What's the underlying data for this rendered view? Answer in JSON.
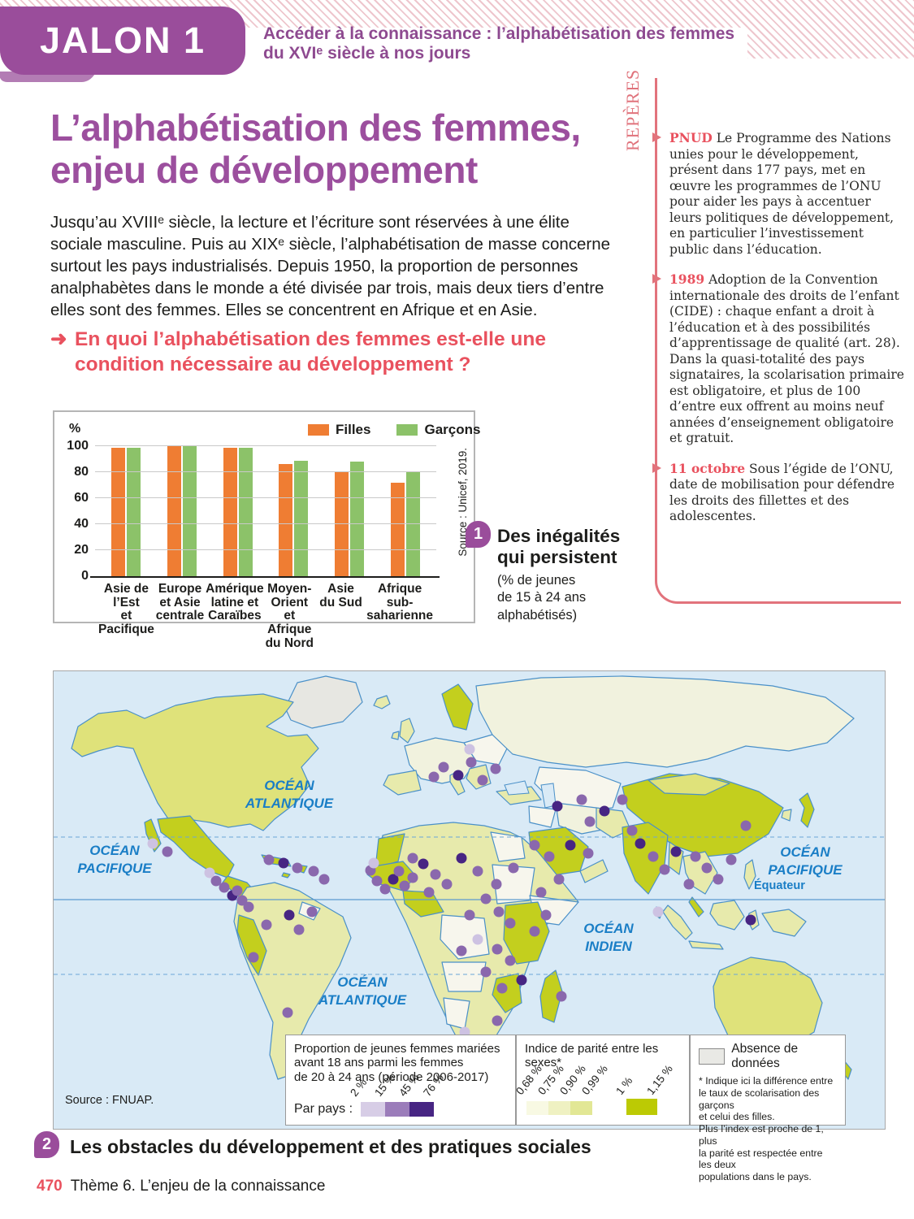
{
  "header": {
    "jalon_label": "JALON 1",
    "subtitle": "Accéder à la connaissance : l’alphabétisation des femmes du XVIᵉ siècle à nos jours"
  },
  "title": {
    "line1": "L’alphabétisation des femmes,",
    "line2": "enjeu de développement"
  },
  "intro": "Jusqu’au XVIIIᵉ siècle, la lecture et l’écriture sont réservées à une élite sociale masculine. Puis au XIXᵉ siècle, l’alphabétisation de masse concerne surtout les pays industrialisés. Depuis 1950, la proportion de personnes analphabètes dans le monde a été divisée par trois, mais deux tiers d’entre elles sont des femmes. Elles se concentrent en Afrique et en Asie.",
  "question": {
    "arrow": "➜",
    "text": "En quoi l’alphabétisation des femmes est-elle une condition nécessaire au développement ?"
  },
  "chart_data": {
    "type": "bar",
    "unit_label": "%",
    "categories": [
      "Asie de l’Est\net Pacifique",
      "Europe\net Asie\ncentrale",
      "Amérique\nlatine et\nCaraïbes",
      "Moyen-Orient\net Afrique\ndu Nord",
      "Asie\ndu Sud",
      "Afrique\nsub-\nsaharienne"
    ],
    "series": [
      {
        "name": "Filles",
        "color": "#ef7d33",
        "values": [
          99,
          100,
          99,
          86,
          80,
          72
        ]
      },
      {
        "name": "Garçons",
        "color": "#8cc269",
        "values": [
          99,
          100,
          99,
          89,
          88,
          80
        ]
      }
    ],
    "ylim": [
      0,
      100
    ],
    "yticks": [
      0,
      20,
      40,
      60,
      80,
      100
    ],
    "source": "Source : Unicef, 2019."
  },
  "figure1": {
    "number": "1",
    "title": "Des inégalités\nqui persistent",
    "note": "(% de jeunes\nde 15 à 24 ans\nalphabétisés)"
  },
  "reperes": {
    "label": "REPÈRES",
    "entries": [
      {
        "term": "PNUD",
        "text": " Le Programme des Nations unies pour le développement, présent dans 177 pays, met en œuvre les programmes de l’ONU pour aider les pays à accentuer leurs politiques de développement, en particulier l’investissement public dans l’éducation."
      },
      {
        "term": "1989",
        "text": " Adoption de la Convention internationale des droits de l’enfant (CIDE) : chaque enfant a droit à l’éducation et à des possibilités d’apprentissage de qualité (art. 28). Dans la quasi-totalité des pays signataires, la scolarisation primaire est obligatoire, et plus de 100 d’entre eux offrent au moins neuf années d’enseignement obligatoire et gratuit."
      },
      {
        "term": "11 octobre",
        "text": " Sous l’égide de l’ONU, date de mobilisation pour défendre les droits des fillettes et des adolescentes."
      }
    ]
  },
  "map": {
    "labels": {
      "atlantic_north": "OCÉAN\nATLANTIQUE",
      "pacific_west": "OCÉAN\nPACIFIQUE",
      "pacific_east": "OCÉAN\nPACIFIQUE",
      "indian": "OCÉAN\nINDIEN",
      "atlantic_south": "OCÉAN\nATLANTIQUE",
      "equator": "Équateur"
    },
    "source": "Source : FNUAP.",
    "legend_marriage": {
      "title": "Proportion de jeunes femmes mariées\navant 18 ans parmi les femmes\nde 20 à 24 ans (période 2006-2017)",
      "prefix": "Par pays :",
      "ticks": [
        "2 %",
        "15 %",
        "45 %",
        "76 %"
      ],
      "colors": [
        "#d7cde6",
        "#9b7cba",
        "#472583"
      ]
    },
    "legend_parity": {
      "title": "Indice de parité entre les sexes*",
      "ticks": [
        "0,68 %",
        "0,75 %",
        "0,90 %",
        "0,99 %"
      ],
      "colors": [
        "#f8f9e3",
        "#eff1c2",
        "#e2e795"
      ],
      "extra_ticks": [
        "1 %",
        "1,15 %"
      ],
      "extra_color": "#bcca04"
    },
    "legend_nodata": {
      "label": "Absence de données",
      "color": "#e9e9e5"
    },
    "footnote": "* Indique ici la différence entre\nle taux de scolarisation des garçons\net celui des filles.\nPlus l’index est proche de 1, plus\nla parité est respectée entre les deux\npopulations dans le pays.",
    "dot_colors": {
      "dark": "#472583",
      "mid": "#8a68ad",
      "light": "#cdc2e2"
    },
    "dots": [
      [
        140,
        222,
        2
      ],
      [
        122,
        212,
        3
      ],
      [
        200,
        258,
        2
      ],
      [
        210,
        266,
        2
      ],
      [
        220,
        276,
        1
      ],
      [
        232,
        282,
        2
      ],
      [
        192,
        248,
        3
      ],
      [
        226,
        270,
        2
      ],
      [
        265,
        232,
        2
      ],
      [
        283,
        236,
        1
      ],
      [
        300,
        242,
        2
      ],
      [
        320,
        246,
        2
      ],
      [
        333,
        256,
        2
      ],
      [
        240,
        290,
        2
      ],
      [
        262,
        312,
        2
      ],
      [
        290,
        300,
        1
      ],
      [
        302,
        318,
        2
      ],
      [
        246,
        352,
        2
      ],
      [
        288,
        420,
        2
      ],
      [
        318,
        296,
        2
      ],
      [
        480,
        118,
        2
      ],
      [
        498,
        128,
        1
      ],
      [
        514,
        112,
        2
      ],
      [
        528,
        134,
        2
      ],
      [
        544,
        120,
        2
      ],
      [
        512,
        96,
        3
      ],
      [
        468,
        130,
        2
      ],
      [
        620,
        166,
        1
      ],
      [
        650,
        158,
        2
      ],
      [
        678,
        172,
        1
      ],
      [
        700,
        158,
        2
      ],
      [
        660,
        185,
        2
      ],
      [
        592,
        214,
        2
      ],
      [
        610,
        228,
        2
      ],
      [
        636,
        214,
        1
      ],
      [
        658,
        224,
        2
      ],
      [
        712,
        196,
        2
      ],
      [
        722,
        212,
        1
      ],
      [
        738,
        228,
        2
      ],
      [
        752,
        244,
        2
      ],
      [
        766,
        222,
        1
      ],
      [
        790,
        228,
        2
      ],
      [
        804,
        242,
        2
      ],
      [
        818,
        256,
        2
      ],
      [
        834,
        232,
        2
      ],
      [
        782,
        262,
        2
      ],
      [
        744,
        296,
        3
      ],
      [
        852,
        190,
        2
      ],
      [
        858,
        306,
        1
      ],
      [
        390,
        245,
        2
      ],
      [
        398,
        258,
        2
      ],
      [
        408,
        268,
        2
      ],
      [
        418,
        256,
        1
      ],
      [
        394,
        236,
        3
      ],
      [
        425,
        246,
        2
      ],
      [
        432,
        264,
        2
      ],
      [
        442,
        254,
        2
      ],
      [
        455,
        237,
        1
      ],
      [
        470,
        250,
        2
      ],
      [
        484,
        262,
        2
      ],
      [
        442,
        230,
        2
      ],
      [
        462,
        272,
        2
      ],
      [
        502,
        230,
        1
      ],
      [
        522,
        246,
        2
      ],
      [
        545,
        262,
        2
      ],
      [
        566,
        242,
        2
      ],
      [
        532,
        280,
        2
      ],
      [
        548,
        296,
        2
      ],
      [
        512,
        300,
        2
      ],
      [
        562,
        310,
        2
      ],
      [
        522,
        330,
        3
      ],
      [
        546,
        342,
        2
      ],
      [
        562,
        356,
        2
      ],
      [
        532,
        370,
        2
      ],
      [
        576,
        380,
        1
      ],
      [
        552,
        390,
        2
      ],
      [
        502,
        344,
        2
      ],
      [
        600,
        272,
        2
      ],
      [
        622,
        256,
        2
      ],
      [
        606,
        300,
        2
      ],
      [
        592,
        320,
        2
      ],
      [
        506,
        444,
        3
      ],
      [
        546,
        430,
        2
      ],
      [
        524,
        464,
        3
      ],
      [
        488,
        482,
        3
      ],
      [
        625,
        400,
        2
      ]
    ]
  },
  "figure2": {
    "number": "2",
    "title": "Les obstacles du développement et des pratiques sociales"
  },
  "footer": {
    "page": "470",
    "theme": "Thème 6. L’enjeu de la connaissance"
  }
}
